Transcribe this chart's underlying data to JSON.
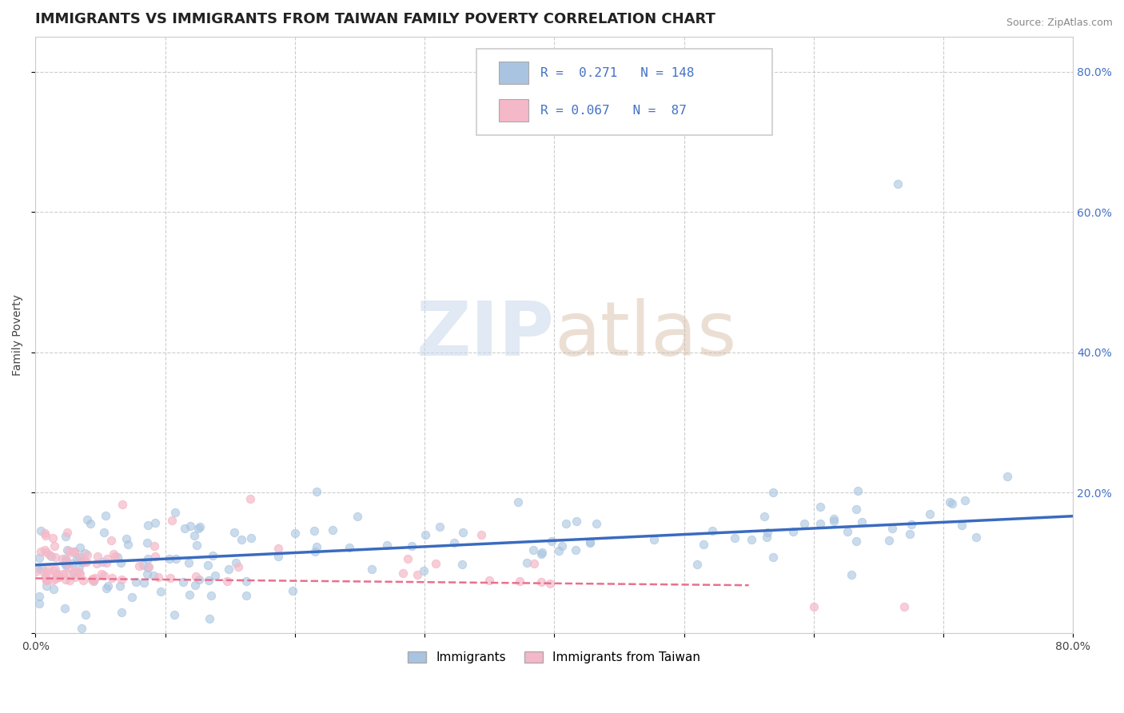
{
  "title": "IMMIGRANTS VS IMMIGRANTS FROM TAIWAN FAMILY POVERTY CORRELATION CHART",
  "source": "Source: ZipAtlas.com",
  "ylabel": "Family Poverty",
  "x_min": 0.0,
  "x_max": 0.8,
  "y_min": 0.0,
  "y_max": 0.85,
  "blue_R": 0.271,
  "blue_N": 148,
  "pink_R": 0.067,
  "pink_N": 87,
  "blue_color": "#a8c4e0",
  "pink_color": "#f4b8c8",
  "blue_line_color": "#3a6bbf",
  "pink_line_color": "#e87090",
  "legend_label_blue": "Immigrants",
  "legend_label_pink": "Immigrants from Taiwan",
  "watermark_color": "#d0dae8",
  "title_fontsize": 13,
  "axis_label_fontsize": 10,
  "tick_label_fontsize": 10,
  "background_color": "#ffffff",
  "grid_color": "#c8c8c8",
  "text_color": "#4472c4"
}
